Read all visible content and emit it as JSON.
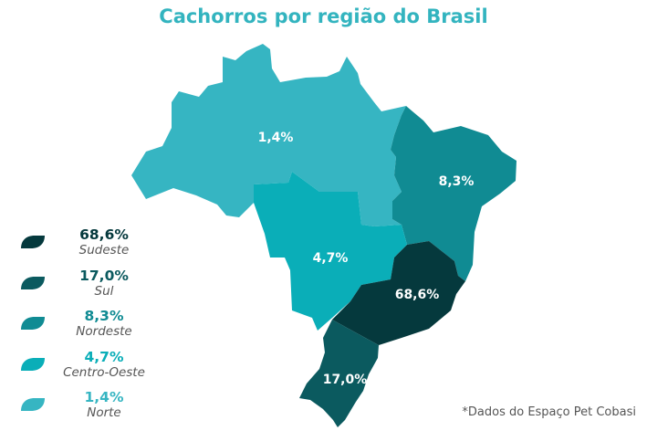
{
  "title": "Cachorros por região do Brasil",
  "title_color": "#33b4bf",
  "source_note": "*Dados do Espaço Pet Cobasi",
  "regions": [
    {
      "name": "Sudeste",
      "value": "68,6%",
      "color": "#05393d"
    },
    {
      "name": "Sul",
      "value": "17,0%",
      "color": "#0b5a5f"
    },
    {
      "name": "Nordeste",
      "value": "8,3%",
      "color": "#108b93"
    },
    {
      "name": "Centro-Oeste",
      "value": "4,7%",
      "color": "#0aaeb8"
    },
    {
      "name": "Norte",
      "value": "1,4%",
      "color": "#36b5c2"
    }
  ]
}
